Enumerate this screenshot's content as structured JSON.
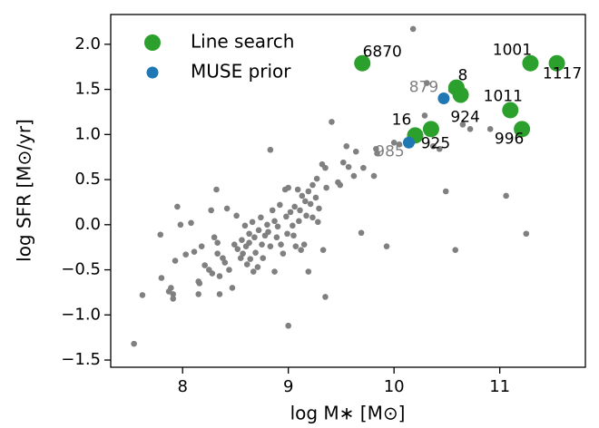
{
  "chart_data": {
    "type": "scatter",
    "xlabel": "log M∗ [M⊙]",
    "ylabel": "log SFR [M⊙/yr]",
    "xlim": [
      7.32,
      11.81
    ],
    "ylim": [
      -1.58,
      2.33
    ],
    "xticks": [
      8,
      9,
      10,
      11
    ],
    "yticks": [
      {
        "value": -1.5,
        "label": "−1.5"
      },
      {
        "value": -1,
        "label": "−1.0"
      },
      {
        "value": -0.5,
        "label": "−0.5"
      },
      {
        "value": 0,
        "label": "0.0"
      },
      {
        "value": 0.5,
        "label": "0.5"
      },
      {
        "value": 1,
        "label": "1.0"
      },
      {
        "value": 1.5,
        "label": "1.5"
      },
      {
        "value": 2,
        "label": "2.0"
      }
    ],
    "legend": "upper left",
    "series": [
      {
        "color": "#808080",
        "x": [
          7.54,
          7.62,
          7.79,
          7.8,
          7.87,
          7.89,
          7.91,
          7.91,
          7.93,
          7.95,
          7.98,
          8.03,
          8.08,
          8.11,
          8.15,
          8.16,
          8.15,
          8.18,
          8.21,
          8.25,
          8.27,
          8.28,
          8.32,
          8.3,
          8.33,
          8.33,
          8.35,
          8.35,
          8.38,
          8.4,
          8.42,
          8.44,
          8.47,
          8.49,
          8.51,
          8.52,
          8.55,
          8.56,
          8.57,
          8.59,
          8.6,
          8.61,
          8.63,
          8.63,
          8.64,
          8.66,
          8.67,
          8.68,
          8.69,
          8.71,
          8.72,
          8.74,
          8.75,
          8.76,
          8.78,
          8.8,
          8.81,
          8.83,
          8.83,
          8.85,
          8.87,
          8.87,
          8.89,
          8.9,
          8.92,
          8.93,
          8.95,
          8.97,
          8.98,
          8.99,
          9.0,
          9.0,
          9.02,
          9.04,
          9.05,
          9.06,
          9.07,
          9.09,
          9.1,
          9.11,
          9.12,
          9.13,
          9.15,
          9.16,
          9.17,
          9.19,
          9.19,
          9.21,
          9.23,
          9.23,
          9.26,
          9.27,
          9.28,
          9.29,
          9.32,
          9.33,
          9.35,
          9.35,
          9.36,
          9.41,
          9.47,
          9.49,
          9.52,
          9.55,
          9.57,
          9.62,
          9.64,
          9.69,
          9.71,
          9.81,
          9.83,
          9.84,
          9.93,
          10.0,
          10.05,
          10.18,
          10.31,
          10.29,
          10.37,
          10.43,
          10.49,
          10.54,
          10.58,
          10.65,
          10.72,
          10.91,
          11.06,
          11.25
        ],
        "values": [
          -1.32,
          -0.78,
          -0.11,
          -0.59,
          -0.74,
          -0.7,
          -0.82,
          -0.77,
          -0.4,
          0.2,
          0.0,
          -0.33,
          0.02,
          -0.3,
          -0.63,
          -0.65,
          -0.77,
          -0.24,
          -0.45,
          -0.5,
          0.16,
          -0.54,
          0.39,
          -0.14,
          -0.2,
          -0.32,
          -0.57,
          -0.77,
          -0.37,
          -0.42,
          0.18,
          -0.5,
          -0.7,
          -0.22,
          0.1,
          -0.27,
          -0.37,
          -0.17,
          -0.32,
          -0.01,
          -0.24,
          -0.44,
          -0.2,
          -0.1,
          -0.38,
          0.03,
          -0.52,
          -0.14,
          -0.31,
          -0.47,
          -0.06,
          0.08,
          -0.22,
          -0.37,
          -0.12,
          0.0,
          -0.08,
          0.83,
          -0.24,
          0.16,
          0.04,
          -0.52,
          -0.14,
          -0.02,
          0.22,
          -0.22,
          -0.32,
          0.39,
          0.09,
          -0.1,
          -1.12,
          0.41,
          0.14,
          -0.01,
          -0.12,
          0.2,
          -0.24,
          0.39,
          0.04,
          0.16,
          -0.28,
          0.32,
          -0.22,
          0.26,
          0.1,
          -0.52,
          0.37,
          0.23,
          0.44,
          0.08,
          0.3,
          0.51,
          0.03,
          0.18,
          0.67,
          -0.28,
          0.63,
          -0.8,
          0.41,
          1.14,
          0.47,
          0.44,
          0.69,
          0.87,
          0.64,
          0.54,
          0.81,
          -0.09,
          0.63,
          0.54,
          0.84,
          0.79,
          -0.24,
          0.91,
          0.89,
          2.17,
          1.57,
          1.21,
          0.87,
          0.84,
          0.37,
          1.49,
          -0.28,
          1.11,
          1.06,
          1.06,
          0.32,
          -0.1
        ]
      },
      {
        "name": "Line search",
        "color": "#2ca02c",
        "label_color": "#000000",
        "x": [
          9.7,
          10.59,
          10.63,
          10.2,
          10.35,
          11.29,
          11.54,
          11.1,
          11.21
        ],
        "values": [
          1.79,
          1.52,
          1.44,
          0.99,
          1.06,
          1.79,
          1.79,
          1.27,
          1.06
        ],
        "labels": [
          "6870",
          "8",
          "924",
          "16",
          "925",
          "1001",
          "1117",
          "1011",
          "996"
        ]
      },
      {
        "name": "MUSE prior",
        "color": "#1f77b4",
        "label_color": "#808080",
        "x": [
          10.47,
          10.14
        ],
        "values": [
          1.4,
          0.91
        ],
        "labels": [
          "879",
          "985"
        ]
      }
    ]
  }
}
